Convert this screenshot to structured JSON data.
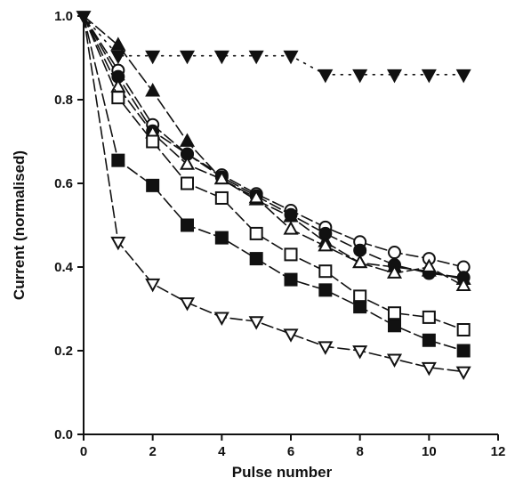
{
  "chart_data": {
    "type": "line",
    "title": "",
    "xlabel": "Pulse number",
    "ylabel": "Current (normalised)",
    "xlim": [
      0,
      12
    ],
    "ylim": [
      0,
      1.0
    ],
    "xticks": [
      0,
      2,
      4,
      6,
      8,
      10,
      12
    ],
    "yticks": [
      0.0,
      0.2,
      0.4,
      0.6,
      0.8,
      1.0
    ],
    "xtick_labels": [
      "0",
      "2",
      "4",
      "6",
      "8",
      "10",
      "12"
    ],
    "ytick_labels": [
      "0.0",
      "0.2",
      "0.4",
      "0.6",
      "0.8",
      "1.0"
    ],
    "grid": false,
    "legend": "none",
    "series": [
      {
        "marker": "filled-triangle-down",
        "line": "dotted",
        "x": [
          0,
          1,
          2,
          3,
          4,
          5,
          6,
          7,
          8,
          9,
          10,
          11
        ],
        "y": [
          1.0,
          0.905,
          0.905,
          0.905,
          0.905,
          0.905,
          0.905,
          0.86,
          0.86,
          0.86,
          0.86,
          0.86
        ]
      },
      {
        "marker": "filled-triangle-up",
        "line": "dashed",
        "x": [
          0,
          1,
          2,
          3,
          4,
          5,
          6,
          7,
          8,
          9,
          10,
          11
        ],
        "y": [
          1.0,
          0.93,
          0.82,
          0.7,
          0.61,
          0.56,
          0.52,
          0.46,
          0.41,
          0.4,
          0.39,
          0.37
        ]
      },
      {
        "marker": "open-circle",
        "line": "dashed",
        "x": [
          0,
          1,
          2,
          3,
          4,
          5,
          6,
          7,
          8,
          9,
          10,
          11
        ],
        "y": [
          1.0,
          0.87,
          0.74,
          0.67,
          0.62,
          0.575,
          0.535,
          0.495,
          0.46,
          0.435,
          0.42,
          0.4
        ]
      },
      {
        "marker": "filled-circle",
        "line": "dashed",
        "x": [
          0,
          1,
          2,
          3,
          4,
          5,
          6,
          7,
          8,
          9,
          10,
          11
        ],
        "y": [
          1.0,
          0.855,
          0.725,
          0.67,
          0.615,
          0.57,
          0.525,
          0.48,
          0.44,
          0.405,
          0.385,
          0.375
        ]
      },
      {
        "marker": "open-triangle-up",
        "line": "dashed",
        "x": [
          0,
          1,
          2,
          3,
          4,
          5,
          6,
          7,
          8,
          9,
          10,
          11
        ],
        "y": [
          1.0,
          0.83,
          0.72,
          0.645,
          0.61,
          0.565,
          0.49,
          0.45,
          0.41,
          0.385,
          0.4,
          0.355
        ]
      },
      {
        "marker": "open-square",
        "line": "dashed",
        "x": [
          0,
          1,
          2,
          3,
          4,
          5,
          6,
          7,
          8,
          9,
          10,
          11
        ],
        "y": [
          1.0,
          0.805,
          0.7,
          0.6,
          0.565,
          0.48,
          0.43,
          0.39,
          0.33,
          0.29,
          0.28,
          0.25
        ]
      },
      {
        "marker": "filled-square",
        "line": "dashed",
        "x": [
          0,
          1,
          2,
          3,
          4,
          5,
          6,
          7,
          8,
          9,
          10,
          11
        ],
        "y": [
          1.0,
          0.655,
          0.595,
          0.5,
          0.47,
          0.42,
          0.37,
          0.345,
          0.305,
          0.26,
          0.225,
          0.2
        ]
      },
      {
        "marker": "open-triangle-down",
        "line": "dashed",
        "x": [
          0,
          1,
          2,
          3,
          4,
          5,
          6,
          7,
          8,
          9,
          10,
          11
        ],
        "y": [
          1.0,
          0.46,
          0.36,
          0.315,
          0.28,
          0.27,
          0.24,
          0.21,
          0.2,
          0.18,
          0.16,
          0.15
        ]
      }
    ]
  }
}
